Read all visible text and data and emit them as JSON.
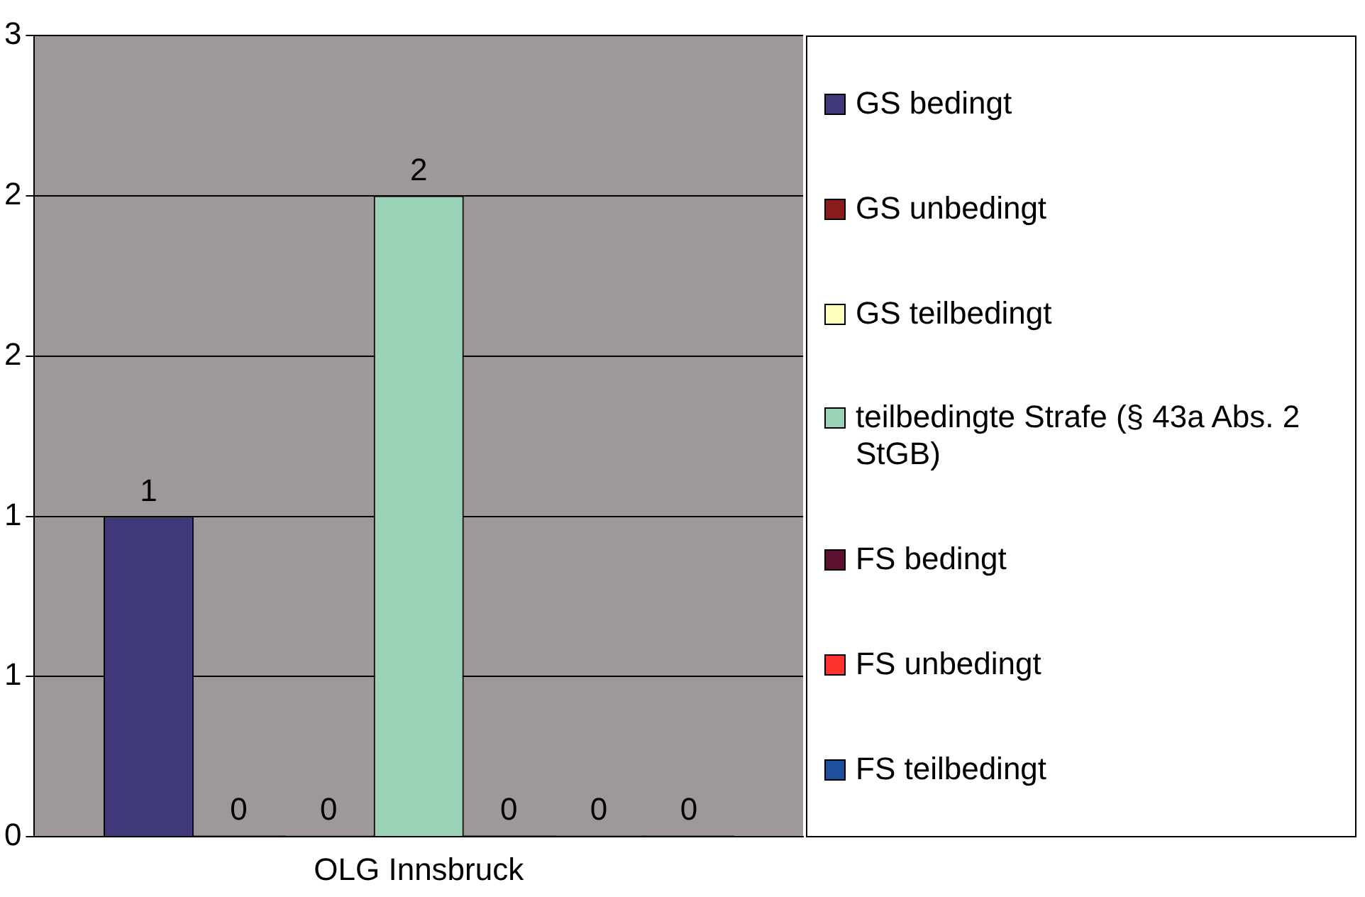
{
  "chart_data": {
    "type": "bar",
    "categories": [
      "OLG Innsbruck"
    ],
    "series": [
      {
        "name": "GS bedingt",
        "color": "#40397a",
        "values": [
          1
        ]
      },
      {
        "name": "GS unbedingt",
        "color": "#8a1c1c",
        "values": [
          0
        ]
      },
      {
        "name": "GS teilbedingt",
        "color": "#ffffc0",
        "values": [
          0
        ]
      },
      {
        "name": "teilbedingte Strafe (§ 43a Abs. 2 StGB)",
        "color": "#9ad2b8",
        "values": [
          2
        ]
      },
      {
        "name": "FS bedingt",
        "color": "#5c1030",
        "values": [
          0
        ]
      },
      {
        "name": "FS unbedingt",
        "color": "#ff3030",
        "values": [
          0
        ]
      },
      {
        "name": "FS teilbedingt",
        "color": "#1e4f9c",
        "values": [
          0
        ]
      }
    ],
    "ylim": [
      0,
      2.5
    ],
    "yticks": [
      0,
      {
        "value": 0.5,
        "label": "1"
      },
      1,
      {
        "value": 1.5,
        "label": "2"
      },
      2,
      {
        "value": 2.5,
        "label": "3"
      }
    ],
    "grid": "y",
    "legend": "right",
    "data_labels": true
  }
}
